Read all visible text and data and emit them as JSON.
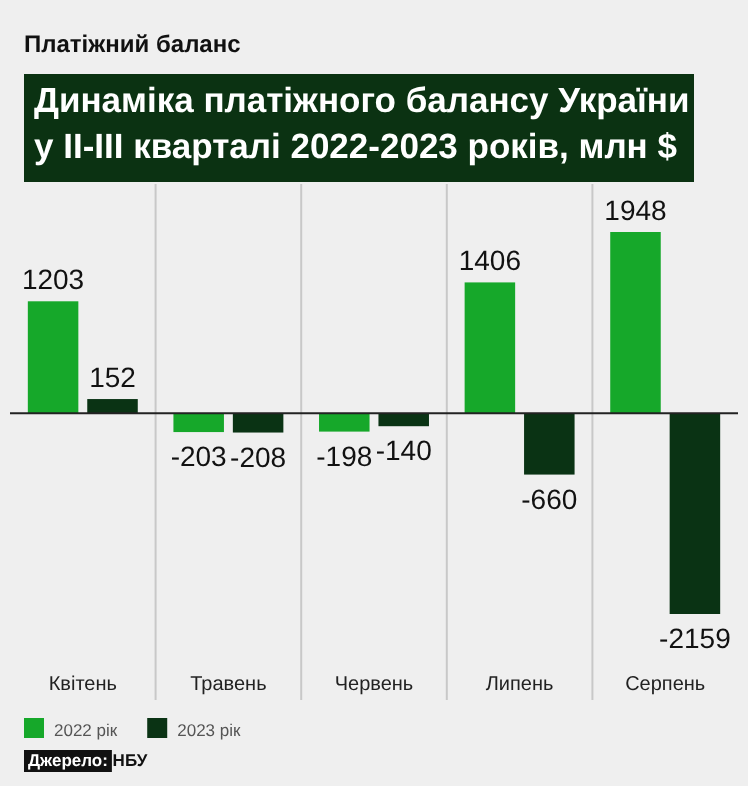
{
  "chart_data": {
    "type": "bar",
    "subtitle": "Платіжний баланс",
    "title": "Динаміка платіжного балансу України у ІІ-ІІІ кварталі 2022-2023 років, млн $",
    "categories": [
      "Квітень",
      "Травень",
      "Червень",
      "Липень",
      "Серпень"
    ],
    "series": [
      {
        "name": "2022 рік",
        "color": "#16a82a",
        "values": [
          1203,
          -203,
          -198,
          1406,
          1948
        ]
      },
      {
        "name": "2023 рік",
        "color": "#0a3314",
        "values": [
          152,
          -208,
          -140,
          -660,
          -2159
        ]
      }
    ],
    "data_labels": true,
    "legend": "bottom left",
    "annotations": [
      "Джерело: НБУ"
    ]
  }
}
